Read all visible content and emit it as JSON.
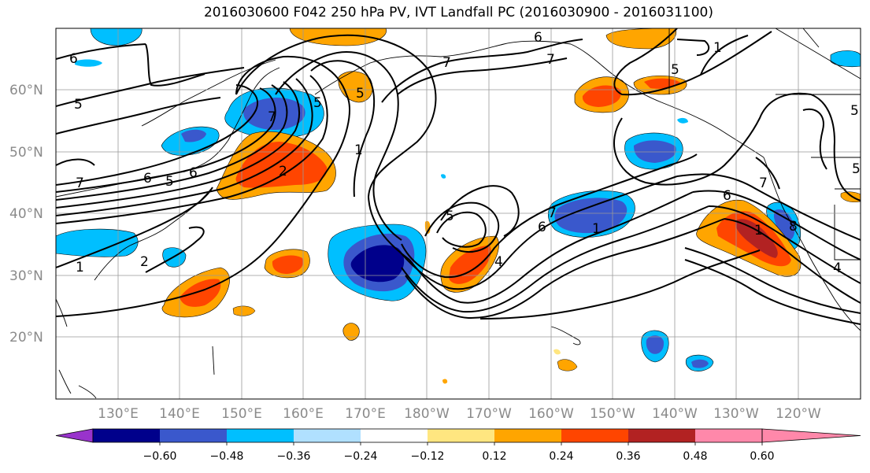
{
  "title": "2016030600 F042 250 hPa PV, IVT Landfall PC (2016030900 - 2016031100)",
  "map": {
    "lat_labels": [
      "60°N",
      "50°N",
      "40°N",
      "30°N",
      "20°N"
    ],
    "lon_labels": [
      "130°E",
      "140°E",
      "150°E",
      "160°E",
      "170°E",
      "180°W",
      "170°W",
      "160°W",
      "150°W",
      "140°W",
      "130°W",
      "120°W"
    ],
    "pv_contour_labels": [
      "6",
      "5",
      "7",
      "6",
      "5",
      "6",
      "5",
      "7",
      "2",
      "1",
      "5",
      "6",
      "7",
      "5",
      "7",
      "1",
      "6",
      "4",
      "5",
      "1",
      "7",
      "8",
      "5",
      "1",
      "6",
      "7",
      "1",
      "5",
      "2",
      "4"
    ]
  },
  "colorbar": {
    "colors": [
      "#9933cc",
      "#00008b",
      "#3a58cc",
      "#00bfff",
      "#b0e0ff",
      "#ffffff",
      "#ffe680",
      "#ffa500",
      "#ff4500",
      "#b22222",
      "#ff88aa"
    ],
    "tick_labels": [
      "−0.60",
      "−0.48",
      "−0.36",
      "−0.24",
      "−0.12",
      "0.12",
      "0.24",
      "0.36",
      "0.48",
      "0.60"
    ]
  }
}
